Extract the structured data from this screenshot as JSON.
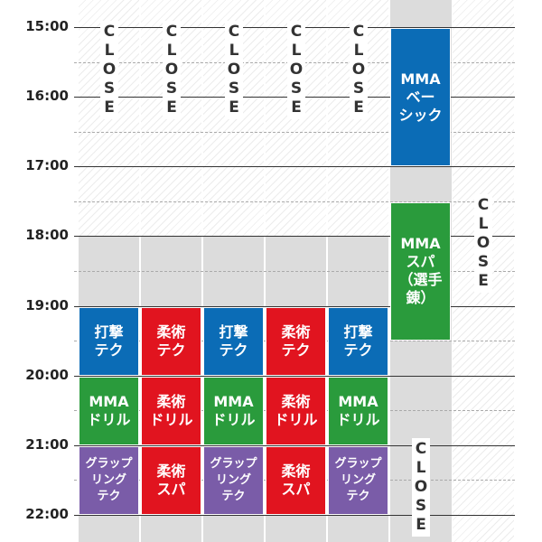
{
  "times": [
    "15:00",
    "16:00",
    "17:00",
    "18:00",
    "19:00",
    "20:00",
    "21:00",
    "22:00"
  ],
  "blocks": [
    {
      "lines": [
        "打撃",
        "テク"
      ],
      "color": "#0b6cb6"
    },
    {
      "lines": [
        "MMA",
        "ドリル"
      ],
      "color": "#2a9b3c"
    },
    {
      "lines": [
        "グラップ",
        "リング",
        "テク"
      ],
      "color": "#7a5ca8"
    },
    {
      "lines": [
        "柔術",
        "テク"
      ],
      "color": "#e1141f"
    },
    {
      "lines": [
        "柔術",
        "ドリル"
      ],
      "color": "#e1141f"
    },
    {
      "lines": [
        "柔術",
        "スパ"
      ],
      "color": "#e1141f"
    },
    {
      "lines": [
        "打撃",
        "テク"
      ],
      "color": "#0b6cb6"
    },
    {
      "lines": [
        "MMA",
        "ドリル"
      ],
      "color": "#2a9b3c"
    },
    {
      "lines": [
        "グラップ",
        "リング",
        "テク"
      ],
      "color": "#7a5ca8"
    },
    {
      "lines": [
        "柔術",
        "テク"
      ],
      "color": "#e1141f"
    },
    {
      "lines": [
        "柔術",
        "ドリル"
      ],
      "color": "#e1141f"
    },
    {
      "lines": [
        "柔術",
        "スパ"
      ],
      "color": "#e1141f"
    },
    {
      "lines": [
        "打撃",
        "テク"
      ],
      "color": "#0b6cb6"
    },
    {
      "lines": [
        "MMA",
        "ドリル"
      ],
      "color": "#2a9b3c"
    },
    {
      "lines": [
        "グラップ",
        "リング",
        "テク"
      ],
      "color": "#7a5ca8"
    },
    {
      "lines": [
        "MMA",
        "ベー",
        "シック"
      ],
      "color": "#0b6cb6"
    },
    {
      "lines": [
        "MMA",
        "スパ",
        "（選手錬）"
      ],
      "color": "#2a9b3c"
    }
  ],
  "closed": [
    "CLOSE",
    "CLOSE",
    "CLOSE",
    "CLOSE",
    "CLOSE",
    "CLOSE",
    "CLOSE"
  ]
}
